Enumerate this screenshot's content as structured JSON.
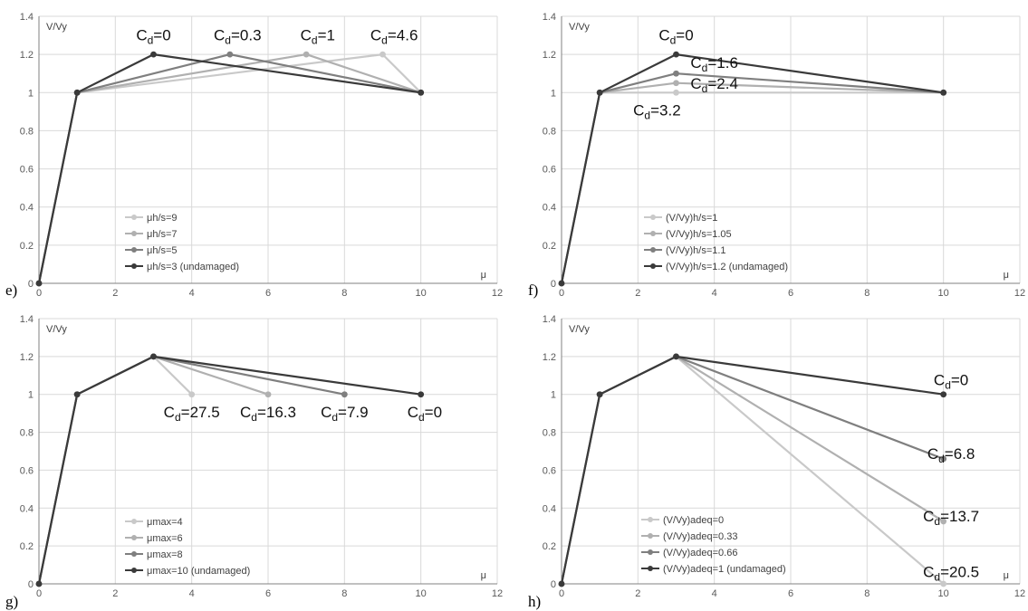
{
  "chart_data": [
    {
      "type": "line",
      "panel_label": "e)",
      "ylabel": "V/Vy",
      "xlabel": "μ",
      "xlim": [
        0,
        12
      ],
      "ylim": [
        0,
        1.4
      ],
      "xticks": [
        "0",
        "2",
        "4",
        "6",
        "8",
        "10",
        "12"
      ],
      "yticks": [
        "0",
        "0.2",
        "0.4",
        "0.6",
        "0.8",
        "1",
        "1.2",
        "1.4"
      ],
      "grid": true,
      "legend_position": "bottom-left",
      "series": [
        {
          "name": "μh/s=9",
          "color": "#c9c9c9",
          "x": [
            0,
            1,
            9,
            10
          ],
          "y": [
            0,
            1,
            1.2,
            1
          ]
        },
        {
          "name": "μh/s=7",
          "color": "#b0b0b0",
          "x": [
            0,
            1,
            7,
            10
          ],
          "y": [
            0,
            1,
            1.2,
            1
          ]
        },
        {
          "name": "μh/s=5",
          "color": "#7f7f7f",
          "x": [
            0,
            1,
            5,
            10
          ],
          "y": [
            0,
            1,
            1.2,
            1
          ]
        },
        {
          "name": "μh/s=3 (undamaged)",
          "color": "#3a3a3a",
          "x": [
            0,
            1,
            3,
            10
          ],
          "y": [
            0,
            1,
            1.2,
            1
          ]
        }
      ],
      "annotations": [
        {
          "label": "d",
          "value": "=0",
          "x": 3.0,
          "y": 1.275
        },
        {
          "label": "d",
          "value": "=0.3",
          "x": 5.2,
          "y": 1.275
        },
        {
          "label": "d",
          "value": "=1",
          "x": 7.3,
          "y": 1.275
        },
        {
          "label": "d",
          "value": "=4.6",
          "x": 9.3,
          "y": 1.275
        }
      ]
    },
    {
      "type": "line",
      "panel_label": "f)",
      "ylabel": "V/Vy",
      "xlabel": "μ",
      "xlim": [
        0,
        12
      ],
      "ylim": [
        0,
        1.4
      ],
      "xticks": [
        "0",
        "2",
        "4",
        "6",
        "8",
        "10",
        "12"
      ],
      "yticks": [
        "0",
        "0.2",
        "0.4",
        "0.6",
        "0.8",
        "1",
        "1.2",
        "1.4"
      ],
      "grid": true,
      "legend_position": "bottom-left",
      "series": [
        {
          "name": "(V/Vy)h/s=1",
          "color": "#c9c9c9",
          "x": [
            0,
            1,
            3,
            10
          ],
          "y": [
            0,
            1,
            1.0,
            1
          ]
        },
        {
          "name": "(V/Vy)h/s=1.05",
          "color": "#b0b0b0",
          "x": [
            0,
            1,
            3,
            10
          ],
          "y": [
            0,
            1,
            1.05,
            1
          ]
        },
        {
          "name": "(V/Vy)h/s=1.1",
          "color": "#7f7f7f",
          "x": [
            0,
            1,
            3,
            10
          ],
          "y": [
            0,
            1,
            1.1,
            1
          ]
        },
        {
          "name": "(V/Vy)h/s=1.2 (undamaged)",
          "color": "#3a3a3a",
          "x": [
            0,
            1,
            3,
            10
          ],
          "y": [
            0,
            1,
            1.2,
            1
          ]
        }
      ],
      "annotations": [
        {
          "label": "d",
          "value": "=0",
          "x": 3.0,
          "y": 1.275
        },
        {
          "label": "d",
          "value": "=1.6",
          "x": 4.0,
          "y": 1.13
        },
        {
          "label": "d",
          "value": "=2.4",
          "x": 4.0,
          "y": 1.02
        },
        {
          "label": "d",
          "value": "=3.2",
          "x": 2.5,
          "y": 0.88
        }
      ]
    },
    {
      "type": "line",
      "panel_label": "g)",
      "ylabel": "V/Vy",
      "xlabel": "μ",
      "xlim": [
        0,
        12
      ],
      "ylim": [
        0,
        1.4
      ],
      "xticks": [
        "0",
        "2",
        "4",
        "6",
        "8",
        "10",
        "12"
      ],
      "yticks": [
        "0",
        "0.2",
        "0.4",
        "0.6",
        "0.8",
        "1",
        "1.2",
        "1.4"
      ],
      "grid": true,
      "legend_position": "bottom-left",
      "series": [
        {
          "name": "μmax=4",
          "color": "#c9c9c9",
          "x": [
            0,
            1,
            3,
            4
          ],
          "y": [
            0,
            1,
            1.2,
            1
          ]
        },
        {
          "name": "μmax=6",
          "color": "#b0b0b0",
          "x": [
            0,
            1,
            3,
            6
          ],
          "y": [
            0,
            1,
            1.2,
            1
          ]
        },
        {
          "name": "μmax=8",
          "color": "#7f7f7f",
          "x": [
            0,
            1,
            3,
            8
          ],
          "y": [
            0,
            1,
            1.2,
            1
          ]
        },
        {
          "name": "μmax=10 (undamaged)",
          "color": "#3a3a3a",
          "x": [
            0,
            1,
            3,
            10
          ],
          "y": [
            0,
            1,
            1.2,
            1
          ]
        }
      ],
      "annotations": [
        {
          "label": "d",
          "value": "=27.5",
          "x": 4.0,
          "y": 0.88
        },
        {
          "label": "d",
          "value": "=16.3",
          "x": 6.0,
          "y": 0.88
        },
        {
          "label": "d",
          "value": "=7.9",
          "x": 8.0,
          "y": 0.88
        },
        {
          "label": "d",
          "value": "=0",
          "x": 10.1,
          "y": 0.88
        }
      ]
    },
    {
      "type": "line",
      "panel_label": "h)",
      "ylabel": "V/Vy",
      "xlabel": "μ",
      "xlim": [
        0,
        12
      ],
      "ylim": [
        0,
        1.4
      ],
      "xticks": [
        "0",
        "2",
        "4",
        "6",
        "8",
        "10",
        "12"
      ],
      "yticks": [
        "0",
        "0.2",
        "0.4",
        "0.6",
        "0.8",
        "1",
        "1.2",
        "1.4"
      ],
      "grid": true,
      "legend_position": "bottom-left",
      "series": [
        {
          "name": "(V/Vy)adeq=0",
          "color": "#c9c9c9",
          "x": [
            0,
            1,
            3,
            10
          ],
          "y": [
            0,
            1,
            1.2,
            0
          ]
        },
        {
          "name": "(V/Vy)adeq=0.33",
          "color": "#b0b0b0",
          "x": [
            0,
            1,
            3,
            10
          ],
          "y": [
            0,
            1,
            1.2,
            0.33
          ]
        },
        {
          "name": "(V/Vy)adeq=0.66",
          "color": "#7f7f7f",
          "x": [
            0,
            1,
            3,
            10
          ],
          "y": [
            0,
            1,
            1.2,
            0.66
          ]
        },
        {
          "name": "(V/Vy)adeq=1 (undamaged)",
          "color": "#3a3a3a",
          "x": [
            0,
            1,
            3,
            10
          ],
          "y": [
            0,
            1,
            1.2,
            1
          ]
        }
      ],
      "annotations": [
        {
          "label": "d",
          "value": "=0",
          "x": 10.2,
          "y": 1.05
        },
        {
          "label": "d",
          "value": "=6.8",
          "x": 10.2,
          "y": 0.66
        },
        {
          "label": "d",
          "value": "=13.7",
          "x": 10.2,
          "y": 0.33
        },
        {
          "label": "d",
          "value": "=20.5",
          "x": 10.2,
          "y": 0.035
        }
      ]
    }
  ]
}
